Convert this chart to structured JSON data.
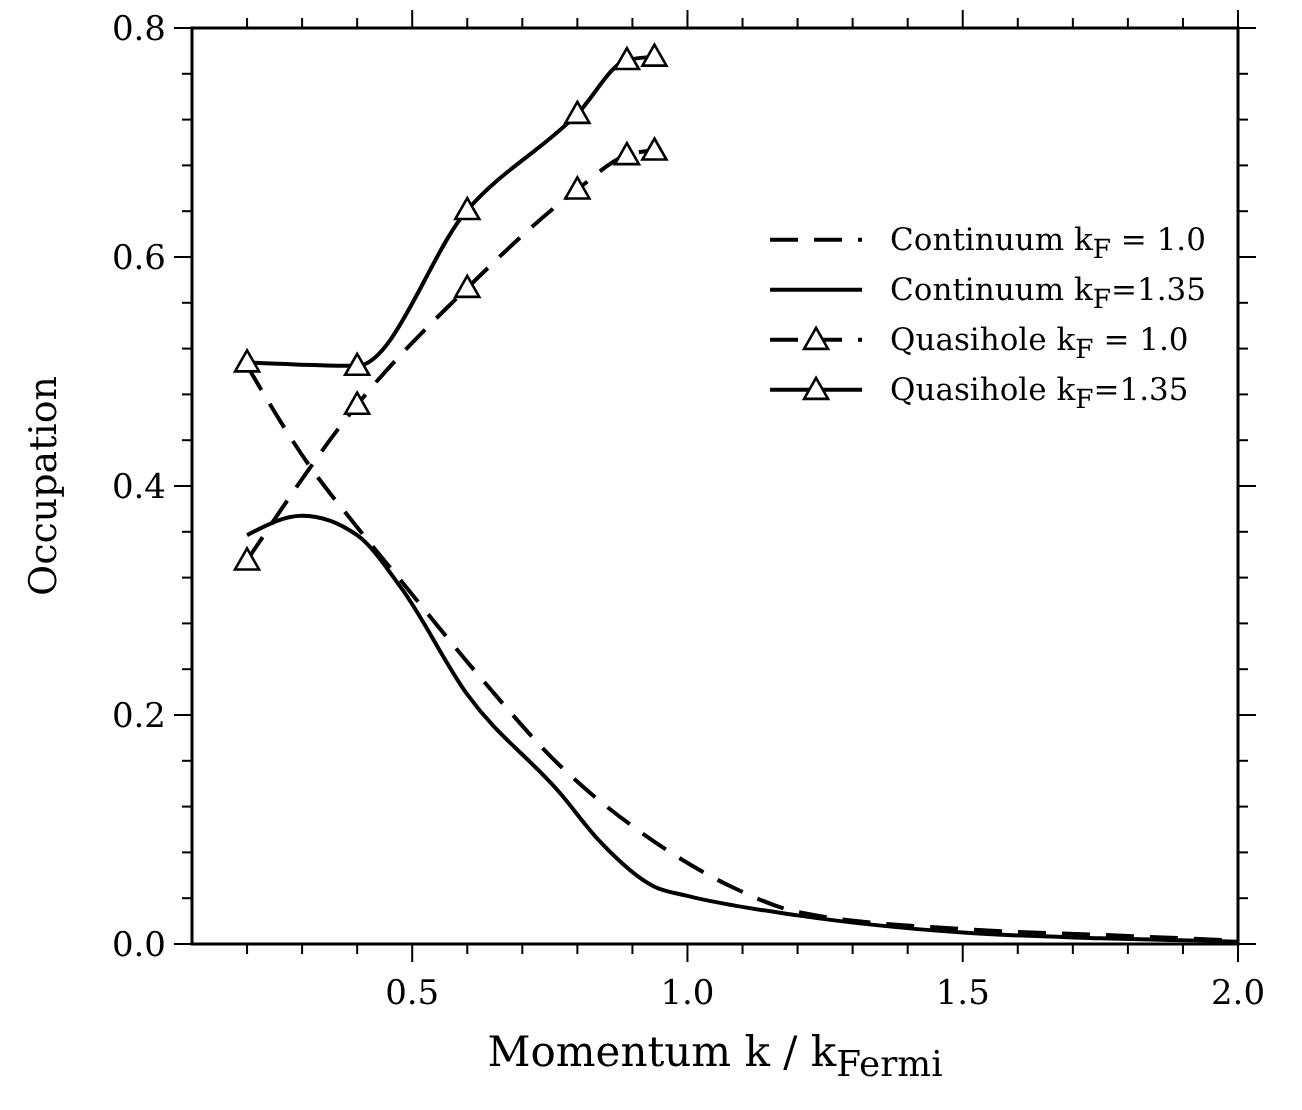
{
  "chart_data": {
    "type": "line",
    "xlabel": "Momentum k / k$_{Fermi}$",
    "ylabel": "Occupation",
    "xlim": [
      0.1,
      2.0
    ],
    "ylim": [
      0,
      0.8
    ],
    "xticks": [
      {
        "value": 0.2,
        "label": null
      },
      {
        "value": 0.3,
        "label": null
      },
      {
        "value": 0.4,
        "label": null
      },
      {
        "value": 0.5,
        "label": "0.5"
      },
      {
        "value": 0.6,
        "label": null
      },
      {
        "value": 0.7,
        "label": null
      },
      {
        "value": 0.8,
        "label": null
      },
      {
        "value": 0.9,
        "label": null
      },
      {
        "value": 1.0,
        "label": "1.0"
      },
      {
        "value": 1.1,
        "label": null
      },
      {
        "value": 1.2,
        "label": null
      },
      {
        "value": 1.3,
        "label": null
      },
      {
        "value": 1.4,
        "label": null
      },
      {
        "value": 1.5,
        "label": "1.5"
      },
      {
        "value": 1.6,
        "label": null
      },
      {
        "value": 1.7,
        "label": null
      },
      {
        "value": 1.8,
        "label": null
      },
      {
        "value": 1.9,
        "label": null
      },
      {
        "value": 2.0,
        "label": "2.0"
      }
    ],
    "yticks": [
      {
        "value": 0,
        "label": "0.0"
      },
      {
        "value": 0.04,
        "label": null
      },
      {
        "value": 0.08,
        "label": null
      },
      {
        "value": 0.12,
        "label": null
      },
      {
        "value": 0.16,
        "label": null
      },
      {
        "value": 0.2,
        "label": "0.2"
      },
      {
        "value": 0.24,
        "label": null
      },
      {
        "value": 0.28,
        "label": null
      },
      {
        "value": 0.32,
        "label": null
      },
      {
        "value": 0.36,
        "label": null
      },
      {
        "value": 0.4,
        "label": "0.4"
      },
      {
        "value": 0.44,
        "label": null
      },
      {
        "value": 0.48,
        "label": null
      },
      {
        "value": 0.52,
        "label": null
      },
      {
        "value": 0.56,
        "label": null
      },
      {
        "value": 0.6,
        "label": "0.6"
      },
      {
        "value": 0.64,
        "label": null
      },
      {
        "value": 0.68,
        "label": null
      },
      {
        "value": 0.72,
        "label": null
      },
      {
        "value": 0.76,
        "label": null
      },
      {
        "value": 0.8,
        "label": "0.8"
      }
    ],
    "grid": false,
    "legend": "right",
    "series": [
      {
        "name": "Continuum k$_{F}$ = 1.0",
        "color": "#000000",
        "line_style": "dashed",
        "marker": "none",
        "x": [
          0.2,
          0.31,
          0.4,
          0.48,
          0.62,
          0.77,
          0.92,
          1.08,
          1.2,
          1.5,
          1.75,
          2.0
        ],
        "values": [
          0.505,
          0.42,
          0.364,
          0.317,
          0.235,
          0.155,
          0.096,
          0.05,
          0.028,
          0.013,
          0.008,
          0.003
        ]
      },
      {
        "name": "Continuum k$_{F}$=1.35",
        "color": "#000000",
        "line_style": "solid",
        "marker": "none",
        "x": [
          0.2,
          0.3,
          0.4,
          0.48,
          0.6,
          0.77,
          0.84,
          0.94,
          1.0,
          1.2,
          1.5,
          1.75,
          2.0
        ],
        "values": [
          0.357,
          0.374,
          0.357,
          0.311,
          0.218,
          0.131,
          0.09,
          0.05,
          0.042,
          0.025,
          0.01,
          0.005,
          0.002
        ]
      },
      {
        "name": "Quasihole k$_{F}$ = 1.0",
        "color": "#000000",
        "line_style": "dashed",
        "marker": "triangle",
        "x": [
          0.2,
          0.4,
          0.6,
          0.8,
          0.89,
          0.94
        ],
        "values": [
          0.335,
          0.471,
          0.573,
          0.659,
          0.689,
          0.693
        ]
      },
      {
        "name": "Quasihole k$_{F}$=1.35",
        "color": "#000000",
        "line_style": "solid",
        "marker": "triangle",
        "x": [
          0.2,
          0.4,
          0.6,
          0.8,
          0.89,
          0.94
        ],
        "values": [
          0.508,
          0.505,
          0.641,
          0.725,
          0.772,
          0.775
        ]
      }
    ]
  }
}
